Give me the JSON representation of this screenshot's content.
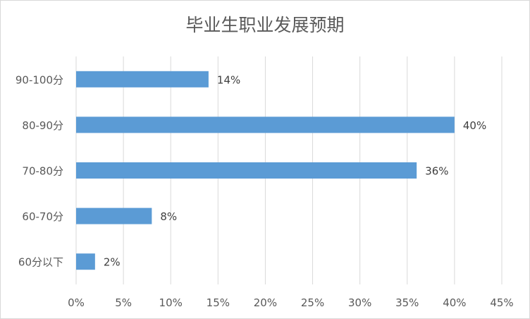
{
  "chart_data": {
    "type": "bar",
    "orientation": "horizontal",
    "title": "毕业生职业发展预期",
    "categories": [
      "90-100分",
      "80-90分",
      "70-80分",
      "60-70分",
      "60分以下"
    ],
    "values": [
      14,
      40,
      36,
      8,
      2
    ],
    "data_labels": [
      "14%",
      "40%",
      "36%",
      "8%",
      "2%"
    ],
    "xlim": [
      0,
      45
    ],
    "x_ticks": [
      "0%",
      "5%",
      "10%",
      "15%",
      "20%",
      "25%",
      "30%",
      "35%",
      "40%",
      "45%"
    ],
    "grid": "vertical",
    "legend": "none",
    "bar_color": "#5b9bd5",
    "grid_color": "#d9d9d9",
    "text_color": "#595959"
  }
}
